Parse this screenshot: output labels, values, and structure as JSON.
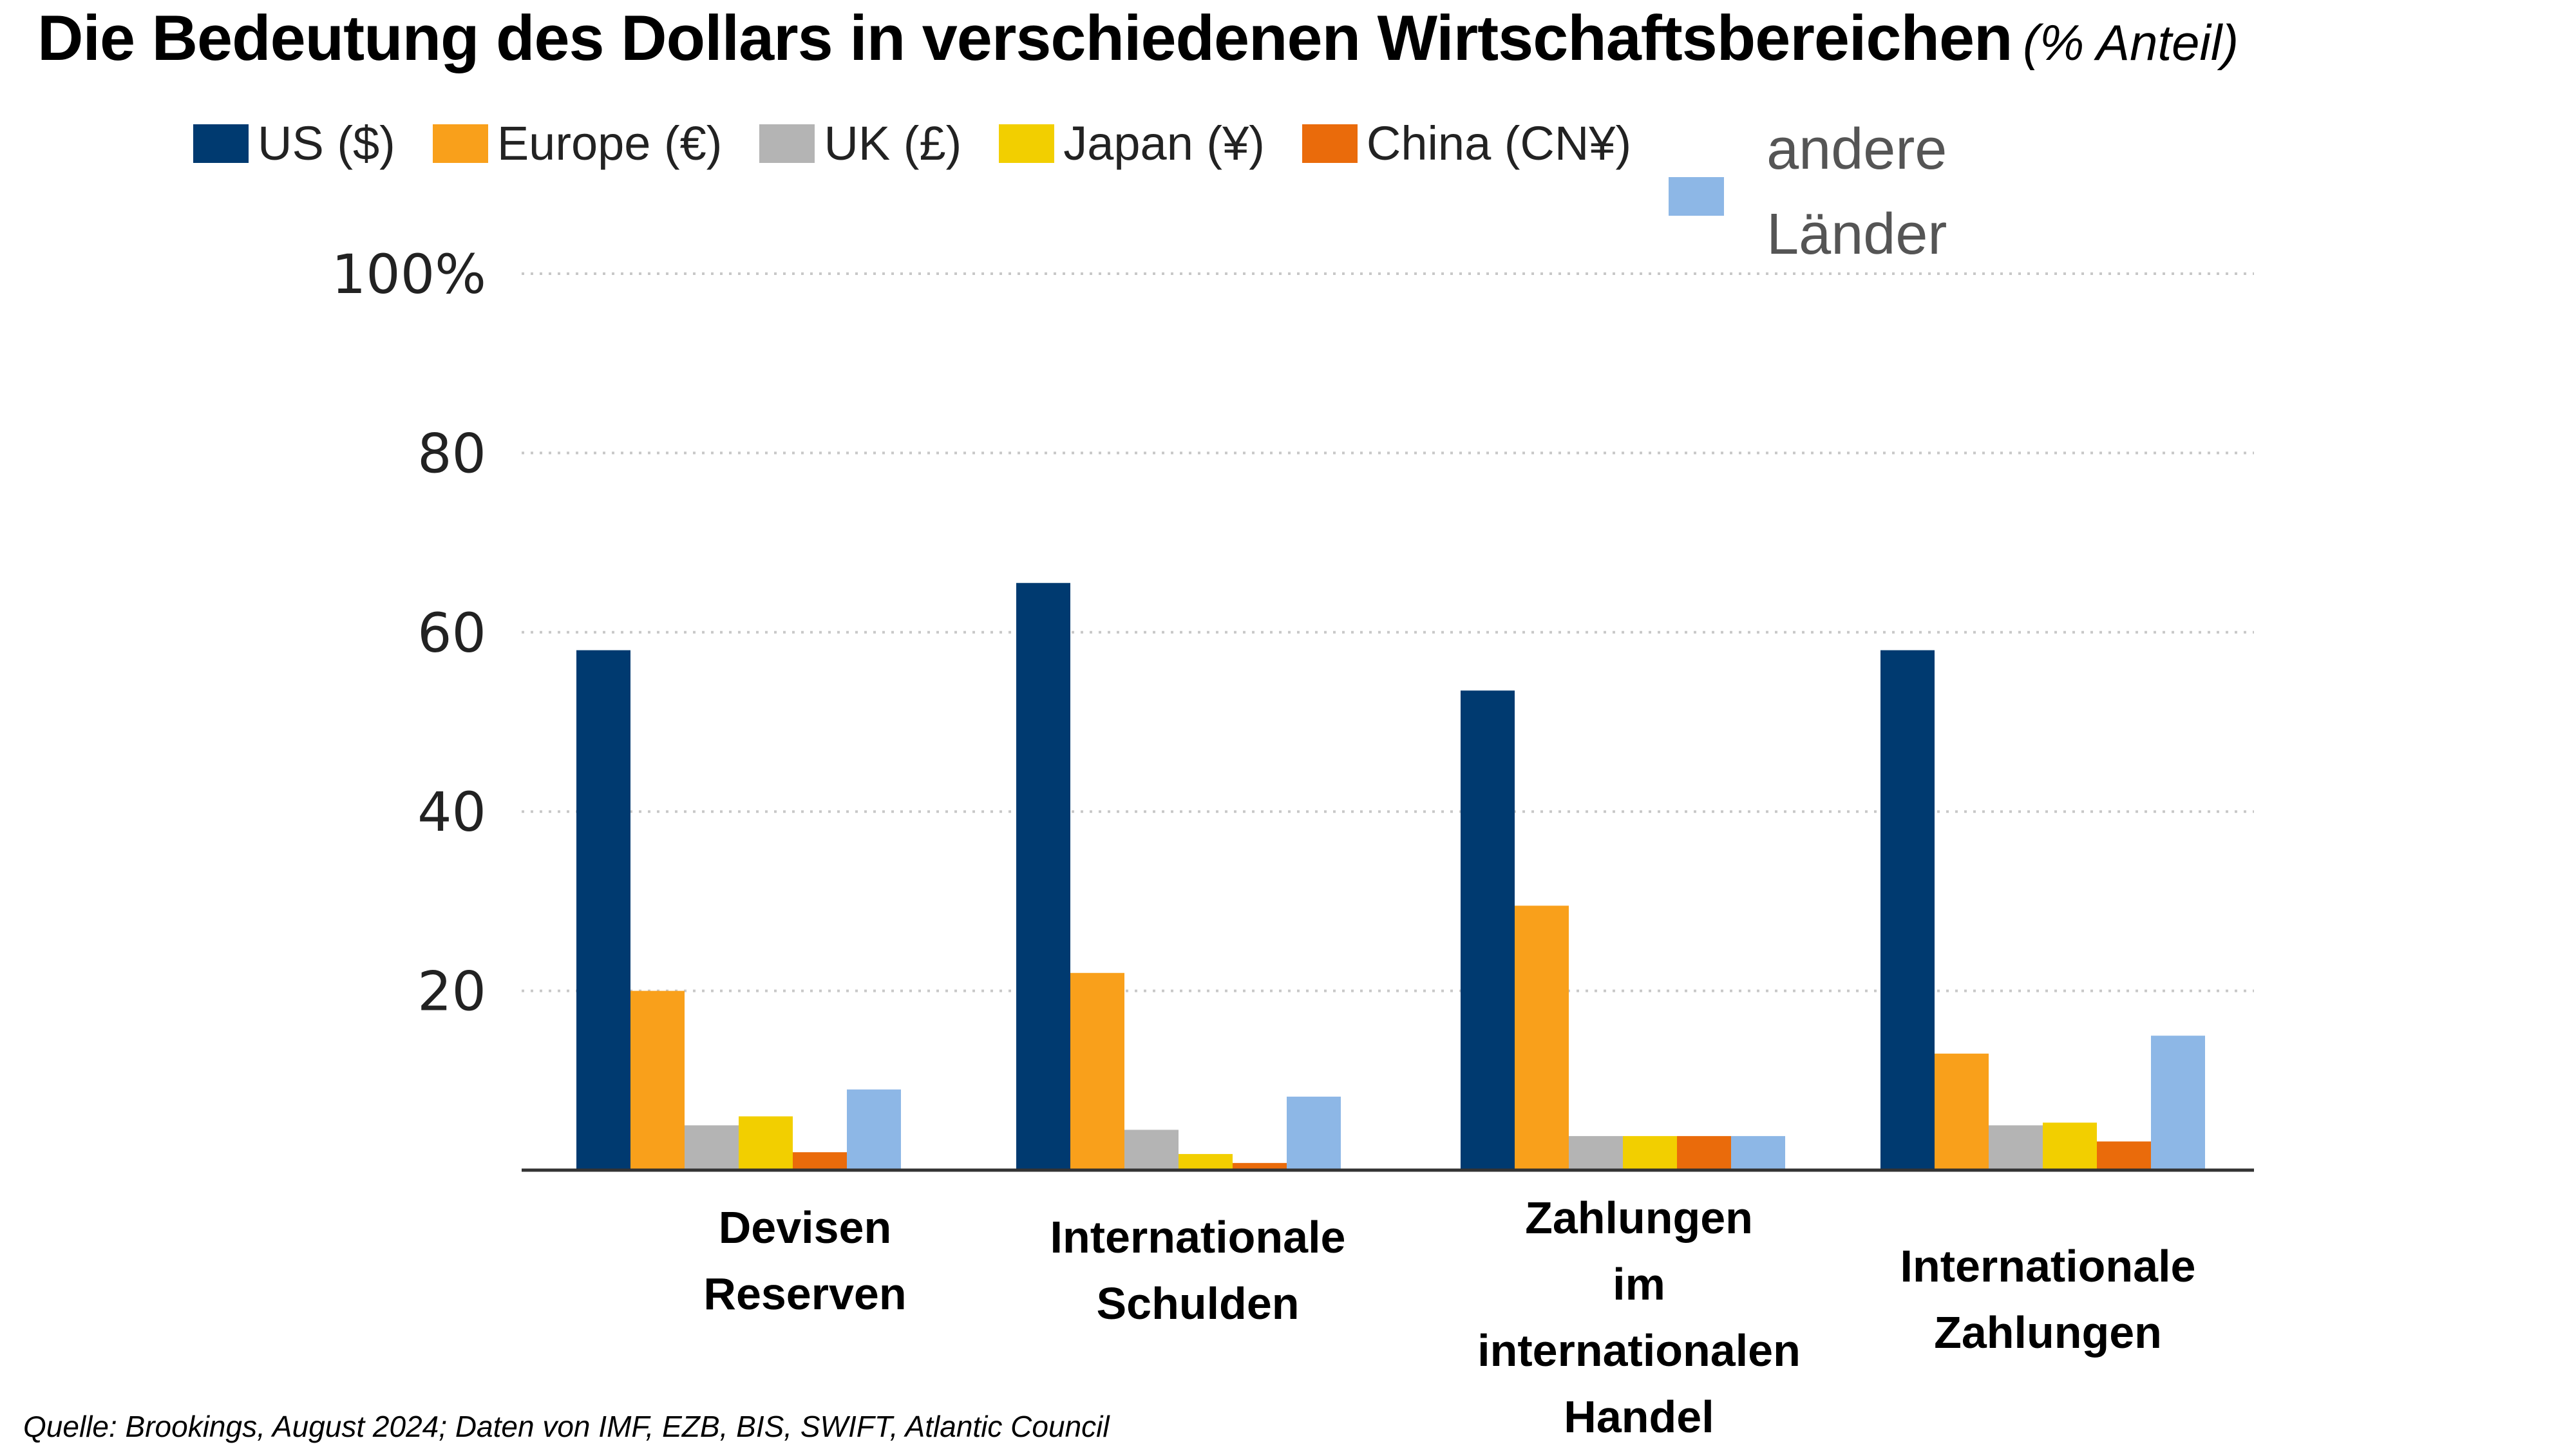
{
  "title": "Die Bedeutung des Dollars in verschiedenen Wirtschaftsbereichen",
  "subtitle": "(% Anteil)",
  "source": "Quelle: Brookings, August 2024; Daten von IMF, EZB, BIS, SWIFT, Atlantic Council",
  "colors": {
    "us": "#003a70",
    "europe": "#f9a01b",
    "uk": "#b4b4b4",
    "japan": "#f2cf00",
    "china": "#ea6b0b",
    "other": "#8db7e6",
    "grid": "#c8c8c8",
    "axis": "#333333"
  },
  "chart_data": {
    "type": "bar",
    "title": "Die Bedeutung des Dollars in verschiedenen Wirtschaftsbereichen (% Anteil)",
    "categories": [
      [
        "Devisen",
        "Reserven"
      ],
      [
        "Internationale",
        "Schulden"
      ],
      [
        "Zahlungen",
        "im",
        "internationalen",
        "Handel"
      ],
      [
        "Internationale",
        "Zahlungen"
      ]
    ],
    "series": [
      {
        "name": "US ($)",
        "color_key": "us",
        "values": [
          58,
          65.5,
          53.5,
          58
        ]
      },
      {
        "name": "Europe (€)",
        "color_key": "europe",
        "values": [
          20,
          22,
          29.5,
          13
        ]
      },
      {
        "name": "UK (£)",
        "color_key": "uk",
        "values": [
          5,
          4.5,
          3.8,
          5
        ]
      },
      {
        "name": "Japan (¥)",
        "color_key": "japan",
        "values": [
          6,
          1.8,
          3.8,
          5.3
        ]
      },
      {
        "name": "China (CN¥)",
        "color_key": "china",
        "values": [
          2,
          0.8,
          3.8,
          3.2
        ]
      },
      {
        "name": "andere Länder",
        "color_key": "other",
        "values": [
          9,
          8.2,
          3.8,
          15
        ]
      }
    ],
    "ylim": [
      0,
      100
    ],
    "y_ticks": [
      {
        "value": 20,
        "label": "20"
      },
      {
        "value": 40,
        "label": "40"
      },
      {
        "value": 60,
        "label": "60"
      },
      {
        "value": 80,
        "label": "80"
      },
      {
        "value": 100,
        "label": "100%"
      }
    ],
    "grid": true,
    "legend": "top"
  }
}
